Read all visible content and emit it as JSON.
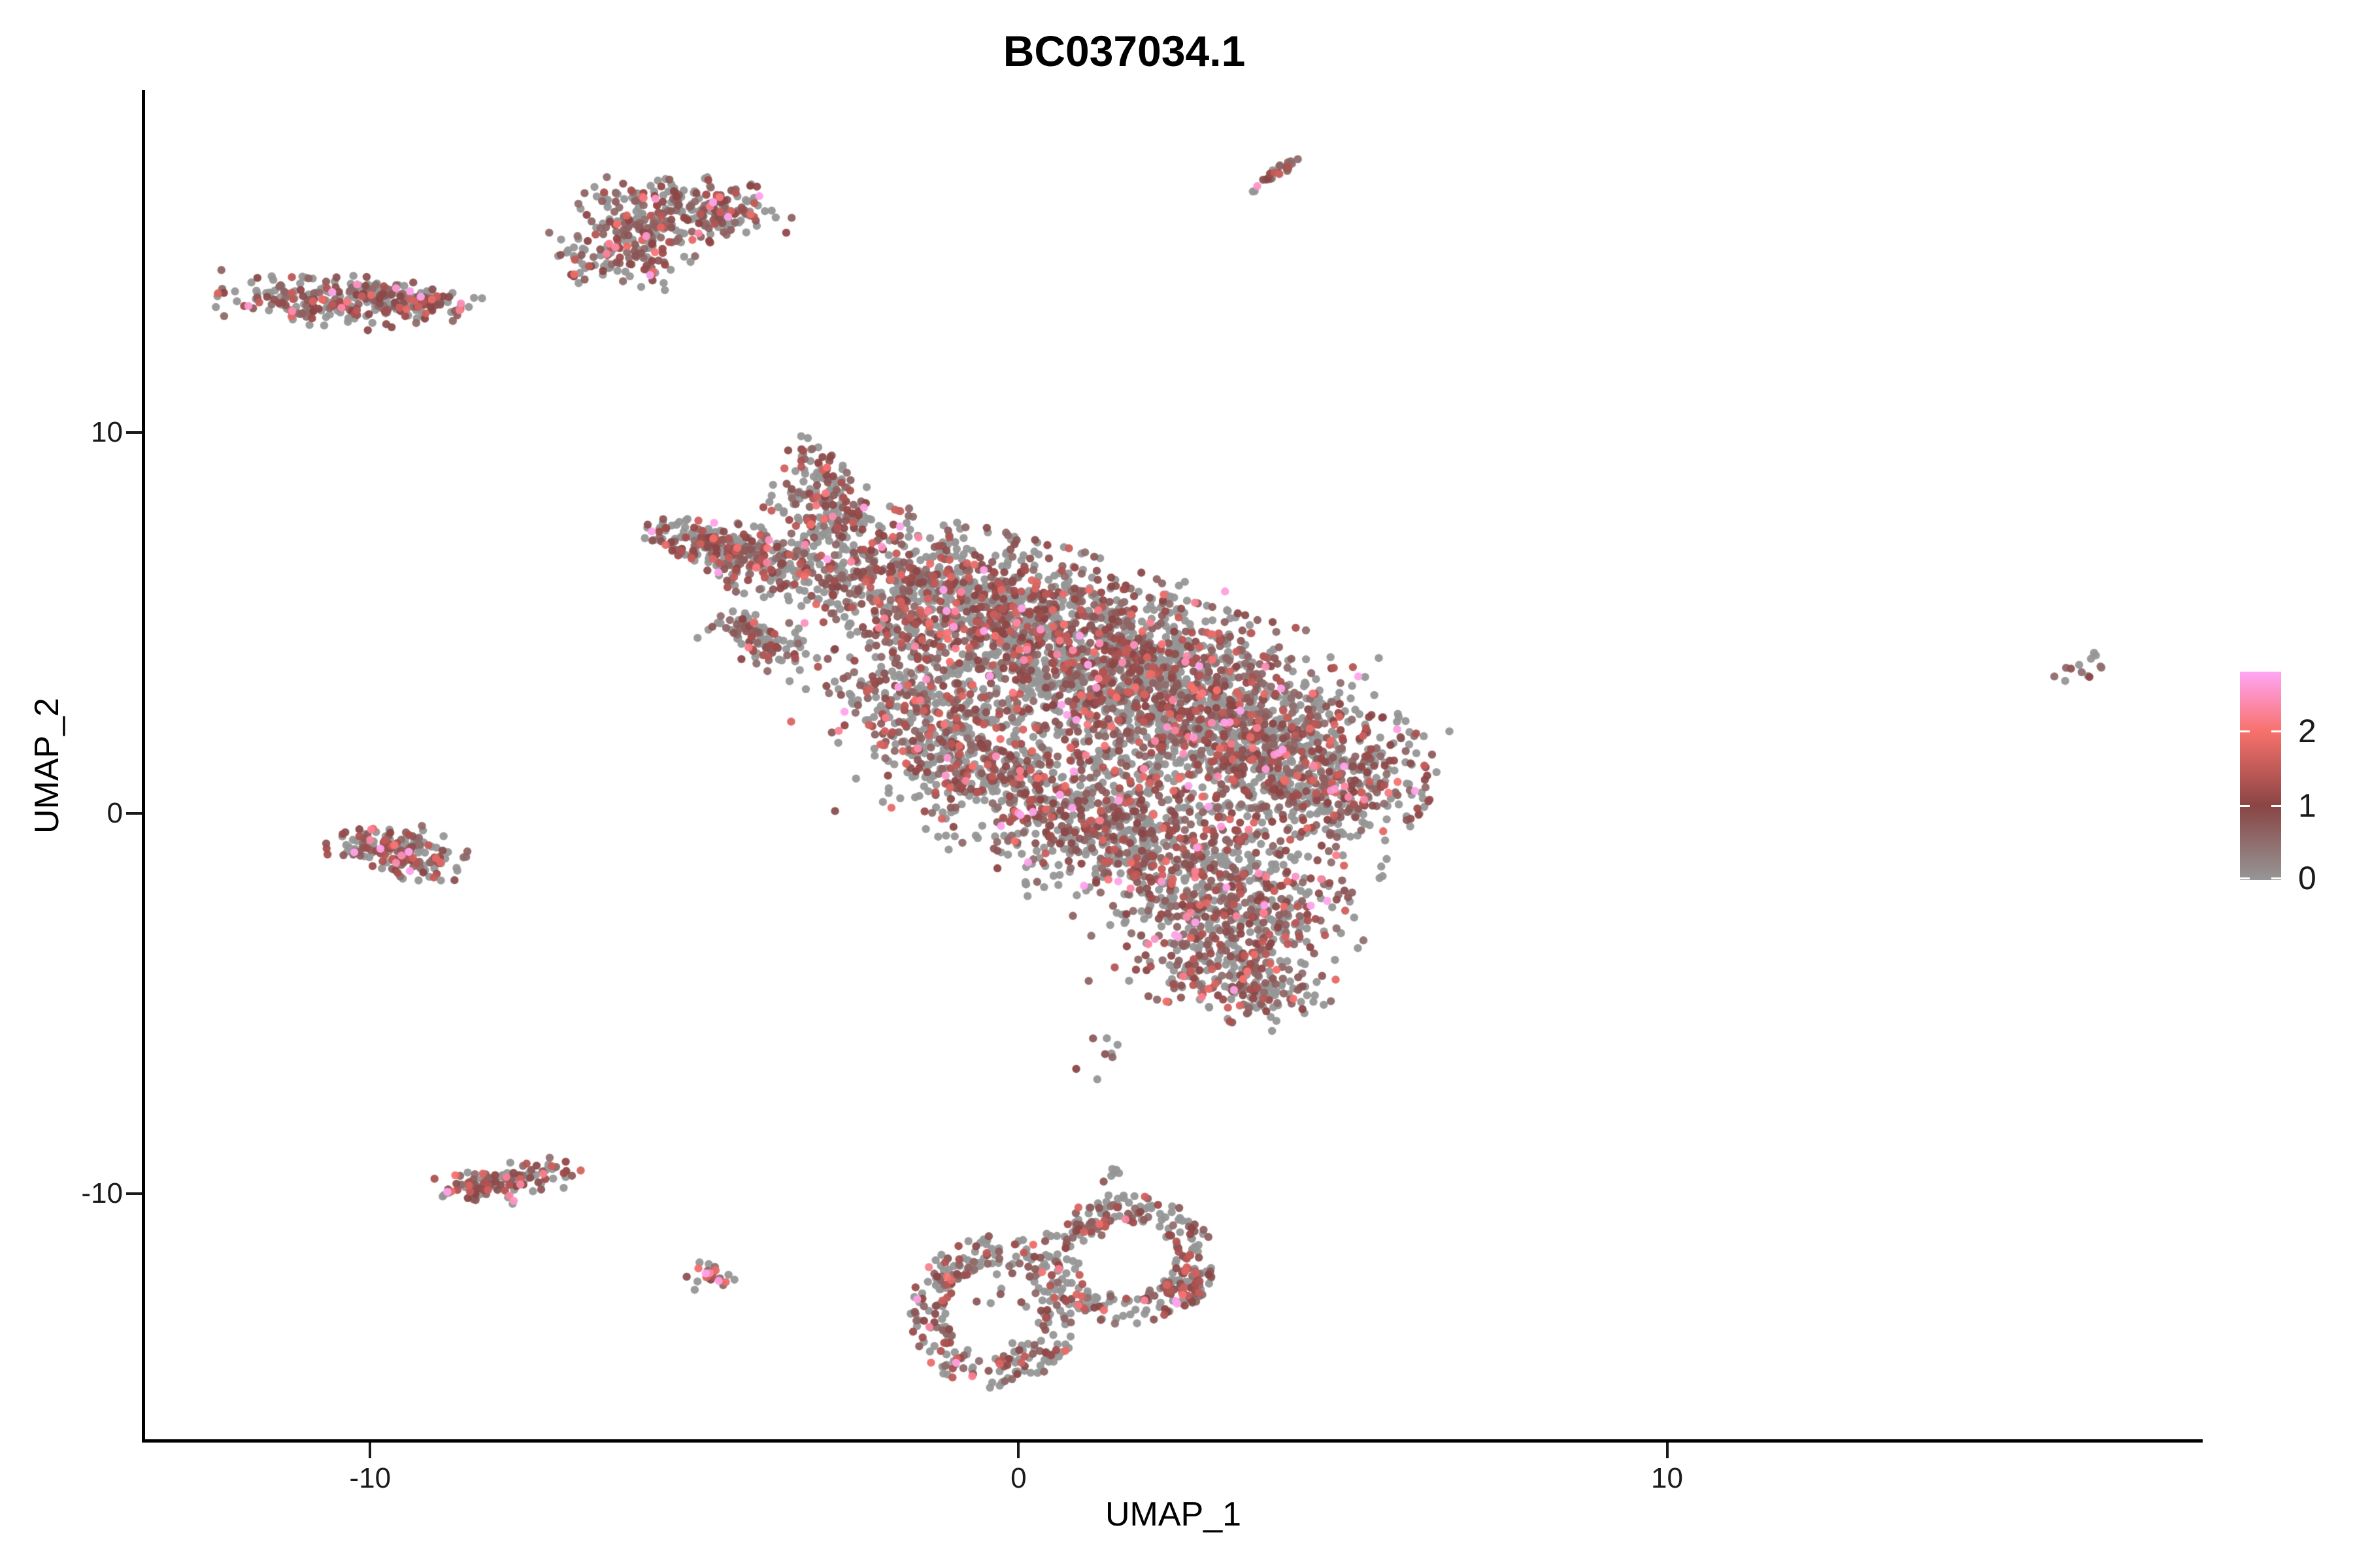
{
  "title": {
    "text": "BC037034.1"
  },
  "axes": {
    "x": {
      "label": "UMAP_1",
      "ticks": [
        -10,
        0,
        10
      ],
      "range": [
        -13.47,
        18.26
      ]
    },
    "y": {
      "label": "UMAP_2",
      "ticks": [
        -10,
        0,
        10
      ],
      "range": [
        -16.45,
        18.97
      ]
    }
  },
  "legend": {
    "ticks": [
      2,
      1,
      0
    ],
    "vmax": 2.8,
    "gradient_stops": [
      {
        "v": 0.0,
        "color": "#969696"
      },
      {
        "v": 1.0,
        "color": "#8A4545"
      },
      {
        "v": 2.0,
        "color": "#F8716C"
      },
      {
        "v": 2.8,
        "color": "#FFA6F5"
      }
    ]
  },
  "chart_data": {
    "type": "scatter",
    "title": "BC037034.1",
    "xlabel": "UMAP_1",
    "ylabel": "UMAP_2",
    "xlim": [
      -13.47,
      18.26
    ],
    "ylim": [
      -16.45,
      18.97
    ],
    "grid": false,
    "legend_position": "right",
    "point_radius_px": 6.2,
    "point_alpha": 0.95,
    "seed": 1337,
    "value_model": {
      "base": 0.45,
      "exp_mean": 0.55,
      "vcap": 2.75
    },
    "clusters": [
      {
        "name": "top-left-comma",
        "gray_frac": 0.4,
        "blobs": [
          [
            -5.15,
            15.85,
            0.72,
            0.4,
            -12,
            150
          ],
          [
            -4.55,
            15.95,
            0.35,
            0.3,
            0,
            55
          ],
          [
            -5.95,
            15.3,
            0.5,
            0.45,
            -25,
            110
          ],
          [
            -6.35,
            14.6,
            0.3,
            0.28,
            -30,
            45
          ],
          [
            -5.75,
            14.35,
            0.18,
            0.28,
            0,
            20
          ],
          [
            -6.75,
            14.05,
            0.12,
            0.1,
            0,
            6
          ]
        ],
        "extras": [
          [
            -5.6,
            16.15,
            2.55
          ],
          [
            -6.35,
            14.7,
            2.3
          ]
        ]
      },
      {
        "name": "far-left-bar",
        "gray_frac": 0.48,
        "blobs": [
          [
            -10.75,
            13.45,
            0.7,
            0.3,
            -5,
            185
          ],
          [
            -9.8,
            13.55,
            0.5,
            0.22,
            -8,
            100
          ],
          [
            -9.05,
            13.45,
            0.3,
            0.17,
            0,
            40
          ],
          [
            -8.33,
            13.52,
            0.05,
            0.05,
            0,
            2
          ]
        ],
        "extras": [
          [
            -10.2,
            13.9,
            2.5
          ],
          [
            -9.6,
            13.8,
            2.6
          ],
          [
            -11.2,
            13.2,
            2.4
          ],
          [
            -8.6,
            13.4,
            2.45
          ],
          [
            -8.62,
            13.22,
            2.2
          ]
        ]
      },
      {
        "name": "top-streak",
        "gray_frac": 0.35,
        "blobs": [
          [
            3.96,
            16.82,
            0.3,
            0.045,
            51,
            26
          ]
        ],
        "extras": [
          [
            3.68,
            16.48,
            2.5
          ]
        ]
      },
      {
        "name": "main-body",
        "gray_frac": 0.52,
        "blobs": [
          [
            -5.2,
            7.3,
            0.35,
            0.25,
            -18,
            55
          ],
          [
            -4.5,
            6.95,
            0.5,
            0.3,
            -18,
            110
          ],
          [
            -3.8,
            6.55,
            0.55,
            0.38,
            -20,
            140
          ],
          [
            -4.25,
            4.9,
            0.22,
            0.16,
            -35,
            28
          ],
          [
            -3.85,
            4.45,
            0.42,
            0.25,
            -38,
            80
          ],
          [
            -3.05,
            8.8,
            0.22,
            0.5,
            15,
            70
          ],
          [
            -2.9,
            7.8,
            0.45,
            0.5,
            0,
            130
          ],
          [
            -1.9,
            6.1,
            0.9,
            0.75,
            -23,
            330
          ],
          [
            -0.6,
            5.3,
            1.1,
            0.9,
            -23,
            520
          ],
          [
            0.8,
            4.4,
            1.25,
            1.0,
            -23,
            680
          ],
          [
            2.1,
            3.3,
            1.25,
            1.0,
            -23,
            680
          ],
          [
            3.3,
            2.2,
            1.15,
            0.95,
            -23,
            600
          ],
          [
            4.3,
            1.15,
            0.95,
            0.8,
            -23,
            430
          ],
          [
            -1.6,
            3.1,
            0.7,
            0.6,
            -23,
            180
          ],
          [
            -1.1,
            1.9,
            0.75,
            0.65,
            -23,
            200
          ],
          [
            -0.1,
            0.9,
            0.95,
            0.8,
            -23,
            330
          ],
          [
            1.2,
            -0.2,
            1.05,
            0.85,
            -23,
            380
          ],
          [
            2.5,
            -1.4,
            1.0,
            0.8,
            -23,
            350
          ],
          [
            3.55,
            -2.5,
            0.85,
            0.7,
            -23,
            280
          ],
          [
            3.1,
            -3.9,
            0.75,
            0.55,
            -20,
            190
          ],
          [
            3.8,
            -4.7,
            0.45,
            0.4,
            -20,
            90
          ],
          [
            5.0,
            0.3,
            0.5,
            0.6,
            0,
            90
          ],
          [
            1.4,
            -6.3,
            0.25,
            0.3,
            0,
            8
          ]
        ],
        "extras": [
          [
            -1.0,
            4.9,
            2.7
          ],
          [
            0.85,
            1.1,
            2.75
          ],
          [
            2.7,
            2.0,
            2.6
          ],
          [
            -3.3,
            5.0,
            2.5
          ],
          [
            1.2,
            3.3,
            2.6
          ],
          [
            2.75,
            -0.9,
            2.7
          ],
          [
            2.1,
            -3.3,
            2.5
          ]
        ]
      },
      {
        "name": "left-blob",
        "gray_frac": 0.33,
        "blobs": [
          [
            -9.95,
            -0.85,
            0.32,
            0.28,
            -10,
            75
          ],
          [
            -9.3,
            -1.2,
            0.38,
            0.3,
            -15,
            85
          ]
        ],
        "extras": [
          [
            -10.0,
            -0.7,
            2.3
          ],
          [
            -9.6,
            -1.3,
            2.4
          ]
        ]
      },
      {
        "name": "bottom-left-bar",
        "gray_frac": 0.33,
        "blobs": [
          [
            -8.35,
            -9.85,
            0.3,
            0.17,
            -10,
            60
          ],
          [
            -7.6,
            -9.6,
            0.38,
            0.2,
            12,
            70
          ]
        ],
        "extras": [
          [
            -7.85,
            -10.05,
            2.3
          ]
        ]
      },
      {
        "name": "tiny-dot-cluster",
        "gray_frac": 0.3,
        "blobs": [
          [
            -4.75,
            -12.2,
            0.16,
            0.18,
            0,
            22
          ]
        ],
        "extras": []
      },
      {
        "name": "bottom-ring-left",
        "gray_frac": 0.6,
        "rings": [
          [
            -0.38,
            -13.1,
            1.02,
            1.55,
            0.3,
            270
          ]
        ],
        "blobs": [
          [
            -0.38,
            -13.1,
            0.45,
            0.7,
            0,
            14
          ]
        ],
        "extras": []
      },
      {
        "name": "bottom-ring-right",
        "gray_frac": 0.55,
        "rings": [
          [
            1.66,
            -11.7,
            1.05,
            1.35,
            0.3,
            225
          ]
        ],
        "blobs": [
          [
            1.3,
            -10.45,
            0.1,
            0.35,
            0,
            18
          ],
          [
            1.45,
            -9.65,
            0.08,
            0.22,
            0,
            6
          ]
        ],
        "extras": [
          [
            1.94,
            -12.8,
            2.3
          ]
        ]
      },
      {
        "name": "bottom-ring-right-tip",
        "gray_frac": 0.28,
        "blobs": [
          [
            2.6,
            -12.5,
            0.22,
            0.35,
            -30,
            55
          ]
        ],
        "extras": []
      },
      {
        "name": "far-right-dot",
        "gray_frac": 0.42,
        "blobs": [
          [
            16.38,
            3.85,
            0.22,
            0.18,
            35,
            13
          ]
        ],
        "extras": []
      }
    ]
  }
}
